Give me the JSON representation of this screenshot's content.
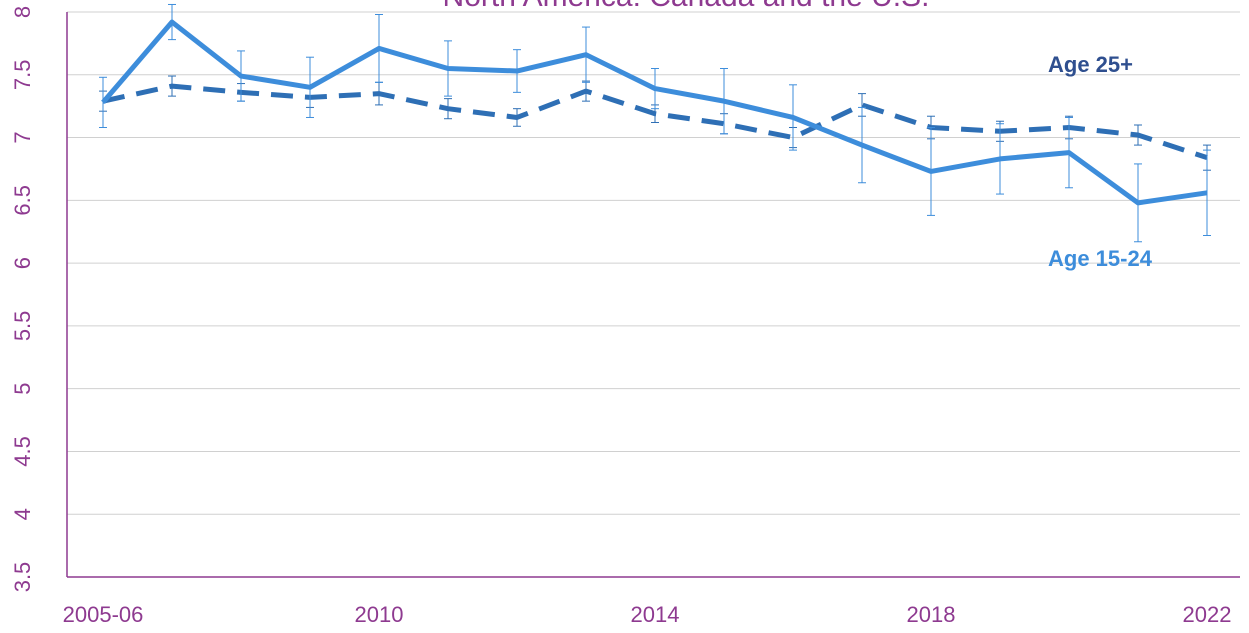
{
  "chart_data": {
    "type": "line",
    "title": "North America: Canada and the U.S.",
    "categories": [
      "2005-06",
      null,
      null,
      null,
      "2010",
      null,
      null,
      null,
      "2014",
      null,
      null,
      null,
      "2018",
      null,
      null,
      null,
      "2022"
    ],
    "series": [
      {
        "name": "Age 25+",
        "color": "#2e6fb5",
        "label_color": "#2f4f8f",
        "dashed": true,
        "values": [
          7.29,
          7.41,
          7.36,
          7.32,
          7.35,
          7.23,
          7.16,
          7.37,
          7.19,
          7.11,
          7.0,
          7.26,
          7.08,
          7.05,
          7.08,
          7.02,
          6.84
        ],
        "errors": [
          0.08,
          0.08,
          0.07,
          0.08,
          0.09,
          0.08,
          0.07,
          0.08,
          0.07,
          0.08,
          0.08,
          0.09,
          0.09,
          0.08,
          0.09,
          0.08,
          0.1
        ]
      },
      {
        "name": "Age 15-24",
        "color": "#3d8ddb",
        "label_color": "#3d8ddb",
        "dashed": false,
        "values": [
          7.28,
          7.92,
          7.49,
          7.4,
          7.71,
          7.55,
          7.53,
          7.66,
          7.39,
          7.29,
          7.16,
          6.94,
          6.73,
          6.83,
          6.88,
          6.48,
          6.56
        ],
        "errors": [
          0.2,
          0.14,
          0.2,
          0.24,
          0.27,
          0.22,
          0.17,
          0.22,
          0.16,
          0.26,
          0.26,
          0.3,
          0.35,
          0.28,
          0.28,
          0.31,
          0.34
        ]
      }
    ],
    "ylim": [
      3.5,
      8
    ],
    "yticks": [
      3.5,
      4,
      4.5,
      5,
      5.5,
      6,
      6.5,
      7,
      7.5,
      8
    ],
    "grid": true
  }
}
